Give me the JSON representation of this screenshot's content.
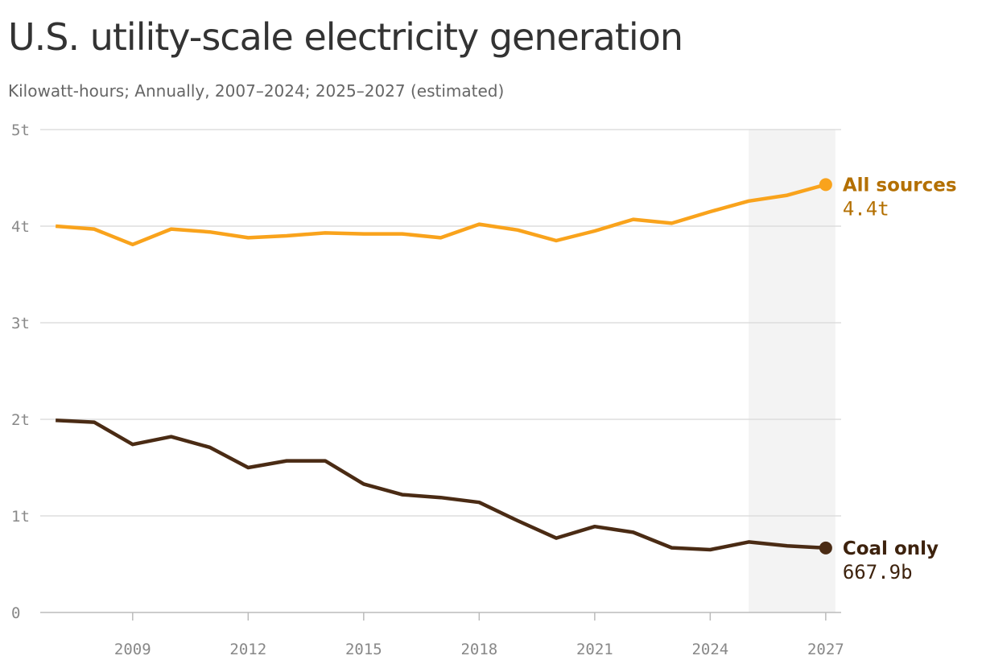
{
  "chart_data": {
    "type": "line",
    "title": "U.S. utility-scale electricity generation",
    "subtitle": "Kilowatt-hours; Annually, 2007–2024; 2025–2027 (estimated)",
    "x": [
      2007,
      2008,
      2009,
      2010,
      2011,
      2012,
      2013,
      2014,
      2015,
      2016,
      2017,
      2018,
      2019,
      2020,
      2021,
      2022,
      2023,
      2024,
      2025,
      2026,
      2027
    ],
    "series": [
      {
        "name": "All sources",
        "color": "#f9a31c",
        "values": [
          4.0,
          3.97,
          3.81,
          3.97,
          3.94,
          3.88,
          3.9,
          3.93,
          3.92,
          3.92,
          3.88,
          4.02,
          3.96,
          3.85,
          3.95,
          4.07,
          4.03,
          4.15,
          4.26,
          4.32,
          4.43
        ],
        "value_labels": [
          null,
          null,
          null,
          null,
          null,
          null,
          null,
          null,
          null,
          null,
          null,
          null,
          null,
          null,
          null,
          null,
          null,
          null,
          null,
          null,
          "4.4t"
        ]
      },
      {
        "name": "Coal only",
        "color": "#4a2b14",
        "values": [
          1.99,
          1.97,
          1.74,
          1.82,
          1.71,
          1.5,
          1.57,
          1.57,
          1.33,
          1.22,
          1.19,
          1.14,
          0.95,
          0.77,
          0.89,
          0.83,
          0.67,
          0.65,
          0.73,
          0.69,
          0.6679
        ],
        "value_labels": [
          null,
          null,
          null,
          null,
          null,
          null,
          null,
          null,
          null,
          null,
          null,
          null,
          null,
          null,
          null,
          null,
          null,
          null,
          null,
          null,
          "667.9b"
        ]
      }
    ],
    "xlim": [
      2006.6,
      2027.4
    ],
    "xticks": [
      2009,
      2012,
      2015,
      2018,
      2021,
      2024,
      2027
    ],
    "ylim": [
      0,
      5
    ],
    "yticks": [
      0,
      {
        "value": 1,
        "label": "1t"
      },
      {
        "value": 2,
        "label": "2t"
      },
      {
        "value": 3,
        "label": "3t"
      },
      {
        "value": 4,
        "label": "4t"
      },
      {
        "value": 5,
        "label": "5t"
      }
    ],
    "grid": true,
    "shaded_region": [
      2025,
      2027.25
    ]
  }
}
